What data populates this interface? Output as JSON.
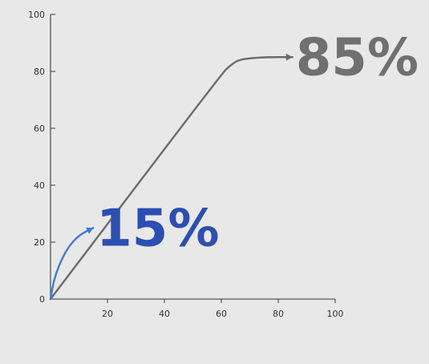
{
  "chart_data": {
    "type": "line",
    "title": "",
    "xlabel": "",
    "ylabel": "",
    "xlim": [
      0,
      100
    ],
    "ylim": [
      0,
      100
    ],
    "x_ticks": [
      "20",
      "40",
      "60",
      "80",
      "100"
    ],
    "y_ticks": [
      "0",
      "20",
      "40",
      "60",
      "80",
      "100"
    ],
    "grid": false,
    "series": [
      {
        "color": "#6b6b6b",
        "points": [
          [
            0,
            0
          ],
          [
            60,
            79
          ],
          [
            63,
            82
          ],
          [
            66,
            84
          ],
          [
            70,
            84.6
          ],
          [
            76,
            85
          ],
          [
            85,
            85
          ]
        ]
      },
      {
        "color": "#3a7bd5",
        "points": [
          [
            0,
            0
          ],
          [
            1,
            6
          ],
          [
            3,
            12
          ],
          [
            6,
            18
          ],
          [
            10,
            22.5
          ],
          [
            15,
            25
          ]
        ]
      }
    ],
    "annotations": [
      {
        "text": "85%",
        "x": 85,
        "y": 85,
        "color": "#707070"
      },
      {
        "text": "15%",
        "x": 15,
        "y": 25,
        "color": "#2b4fb3"
      }
    ]
  }
}
